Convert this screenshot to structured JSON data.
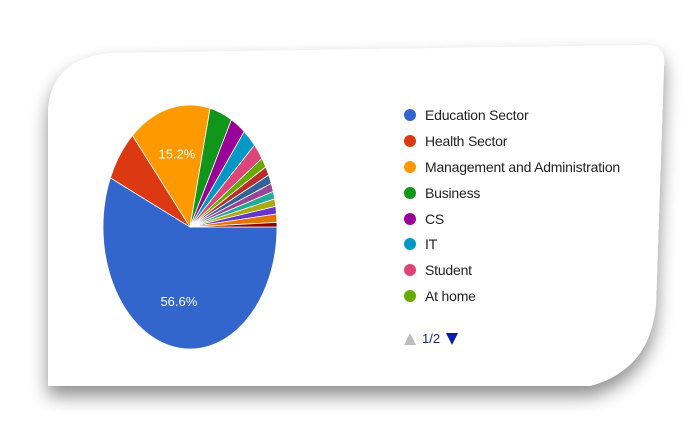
{
  "chart_data": {
    "type": "pie",
    "legend_position": "right",
    "slices": [
      {
        "label": "Education Sector",
        "value": 56.6,
        "color": "#3366cc",
        "show_label": true
      },
      {
        "label": "Health Sector",
        "value": 6.9,
        "color": "#dc3912"
      },
      {
        "label": "Management and Administration",
        "value": 15.2,
        "color": "#ff9900",
        "show_label": true
      },
      {
        "label": "Business",
        "value": 4.2,
        "color": "#109618"
      },
      {
        "label": "CS",
        "value": 2.8,
        "color": "#990099"
      },
      {
        "label": "IT",
        "value": 2.6,
        "color": "#0099c6"
      },
      {
        "label": "Student",
        "value": 2.2,
        "color": "#dd4477"
      },
      {
        "label": "At home",
        "value": 1.3,
        "color": "#66aa00"
      },
      {
        "value": 1.2,
        "color": "#b82e2e"
      },
      {
        "value": 1.2,
        "color": "#316395"
      },
      {
        "value": 1.1,
        "color": "#994499"
      },
      {
        "value": 1.0,
        "color": "#22aa99"
      },
      {
        "value": 1.0,
        "color": "#aaaa11"
      },
      {
        "value": 1.0,
        "color": "#6633cc"
      },
      {
        "value": 1.1,
        "color": "#e67300"
      },
      {
        "value": 0.6,
        "color": "#8b0707"
      }
    ]
  },
  "legend": {
    "items": [
      {
        "label": "Education Sector",
        "color": "#3366cc"
      },
      {
        "label": "Health Sector",
        "color": "#dc3912"
      },
      {
        "label": "Management and Administration",
        "color": "#ff9900"
      },
      {
        "label": "Business",
        "color": "#109618"
      },
      {
        "label": "CS",
        "color": "#990099"
      },
      {
        "label": "IT",
        "color": "#0099c6"
      },
      {
        "label": "Student",
        "color": "#dd4477"
      },
      {
        "label": "At home",
        "color": "#66aa00"
      }
    ]
  },
  "pager": {
    "label": "1/2",
    "up_icon": "triangle-up-icon",
    "down_icon": "triangle-down-icon"
  }
}
